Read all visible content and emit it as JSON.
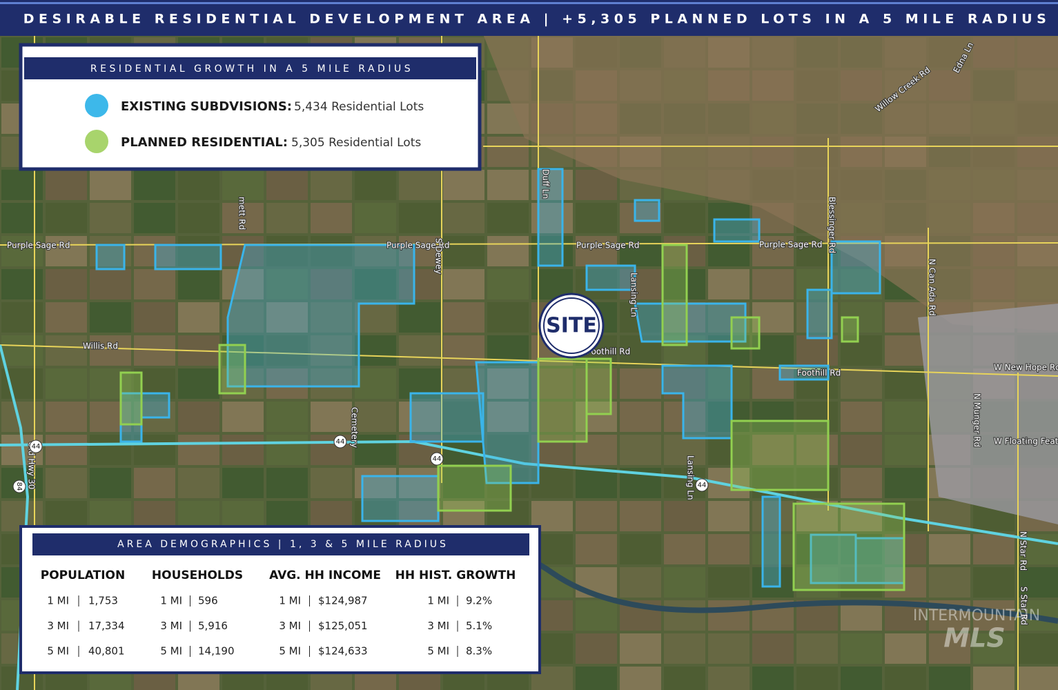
{
  "banner": "DESIRABLE RESIDENTIAL DEVELOPMENT AREA | +5,305 PLANNED LOTS IN A 5 MILE RADIUS",
  "legend": {
    "title": "RESIDENTIAL GROWTH IN A 5 MILE RADIUS",
    "items": [
      {
        "label": "EXISTING SUBDVISIONS:",
        "value": "5,434 Residential Lots"
      },
      {
        "label": "PLANNED RESIDENTIAL:",
        "value": "5,305 Residential Lots"
      }
    ]
  },
  "site": "SITE",
  "roads": [
    "Purple Sage Rd",
    "Purple Sage Rd",
    "Purple Sage Rd",
    "Purple Sage Rd",
    "Willis Rd",
    "Foothill Rd",
    "Foothill Rd",
    "W New Hope Rd",
    "Willow Creek Rd",
    "Edna Ln",
    "Blessinger Rd",
    "N Can Ada Rd",
    "N Munger Rd",
    "W Floating Feathe",
    "N Star Rd",
    "S Star Rd",
    "Lansing Ln",
    "Lansing Ln",
    "Old Hwy 30",
    "S Dewey",
    "Cemetery",
    "Duff Ln",
    "mett Rd",
    "44",
    "44",
    "44",
    "44",
    "84"
  ],
  "demographics": {
    "title": "AREA DEMOGRAPHICS | 1, 3 & 5 MILE RADIUS",
    "columns": [
      {
        "heading": "POPULATION",
        "rows": [
          {
            "radius": "1 MI",
            "value": "1,753"
          },
          {
            "radius": "3 MI",
            "value": "17,334"
          },
          {
            "radius": "5 MI",
            "value": "40,801"
          }
        ]
      },
      {
        "heading": "HOUSEHOLDS",
        "rows": [
          {
            "radius": "1 MI",
            "value": "596"
          },
          {
            "radius": "3 MI",
            "value": "5,916"
          },
          {
            "radius": "5 MI",
            "value": "14,190"
          }
        ]
      },
      {
        "heading": "AVG. HH INCOME",
        "rows": [
          {
            "radius": "1 MI",
            "value": "$124,987"
          },
          {
            "radius": "3 MI",
            "value": "$125,051"
          },
          {
            "radius": "5 MI",
            "value": "$124,633"
          }
        ]
      },
      {
        "heading": "HH HIST. GROWTH",
        "rows": [
          {
            "radius": "1 MI",
            "value": "9.2%"
          },
          {
            "radius": "3 MI",
            "value": "5.1%"
          },
          {
            "radius": "5 MI",
            "value": "8.3%"
          }
        ]
      }
    ]
  },
  "watermark": [
    "INTERMOUNTAIN",
    "MLS"
  ]
}
